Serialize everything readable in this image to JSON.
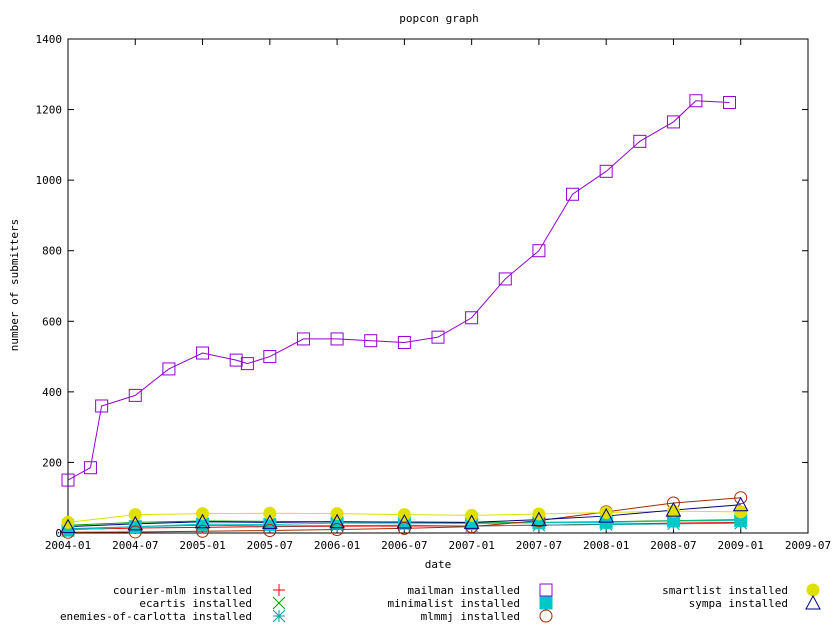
{
  "chart_data": {
    "type": "line",
    "title": "popcon graph",
    "xlabel": "date",
    "ylabel": "number of submitters",
    "ylim": [
      0,
      1400
    ],
    "yticks": [
      0,
      200,
      400,
      600,
      800,
      1000,
      1200,
      1400
    ],
    "xlim": [
      "2004-01",
      "2009-07"
    ],
    "xticks": [
      "2004-01",
      "2004-07",
      "2005-01",
      "2005-07",
      "2006-01",
      "2006-07",
      "2007-01",
      "2007-07",
      "2008-01",
      "2008-07",
      "2009-01",
      "2009-07"
    ],
    "grid": false,
    "legend_position": "bottom",
    "series": [
      {
        "name": "courier-mlm installed",
        "color": "#ff0000",
        "marker": "plus",
        "x": [
          "2004-01",
          "2004-07",
          "2005-01",
          "2005-07",
          "2006-01",
          "2006-07",
          "2007-01",
          "2007-07",
          "2008-01",
          "2008-07",
          "2009-01"
        ],
        "y": [
          10,
          14,
          16,
          18,
          19,
          20,
          20,
          22,
          25,
          28,
          30
        ]
      },
      {
        "name": "ecartis installed",
        "color": "#00a000",
        "marker": "cross",
        "x": [
          "2004-01",
          "2004-07",
          "2005-01",
          "2005-07",
          "2006-01",
          "2006-07",
          "2007-01",
          "2007-07",
          "2008-01",
          "2008-07",
          "2009-01"
        ],
        "y": [
          22,
          30,
          34,
          33,
          32,
          30,
          29,
          30,
          32,
          35,
          38
        ]
      },
      {
        "name": "enemies-of-carlotta installed",
        "color": "#00a0a0",
        "marker": "asterisk",
        "x": [
          "2004-01",
          "2004-07",
          "2005-01",
          "2005-07",
          "2006-01",
          "2006-07",
          "2007-01",
          "2007-07",
          "2008-01",
          "2008-07",
          "2009-01"
        ],
        "y": [
          12,
          18,
          22,
          20,
          21,
          22,
          20,
          22,
          24,
          26,
          28
        ]
      },
      {
        "name": "mailman installed",
        "color": "#9400d3",
        "marker": "square",
        "x": [
          "2004-01",
          "2004-03",
          "2004-04",
          "2004-07",
          "2004-10",
          "2005-01",
          "2005-04",
          "2005-05",
          "2005-07",
          "2005-10",
          "2006-01",
          "2006-04",
          "2006-07",
          "2006-10",
          "2007-01",
          "2007-04",
          "2007-07",
          "2007-10",
          "2008-01",
          "2008-04",
          "2008-07",
          "2008-09",
          "2008-12"
        ],
        "y": [
          150,
          185,
          360,
          390,
          465,
          510,
          490,
          480,
          500,
          550,
          550,
          545,
          540,
          555,
          610,
          720,
          800,
          960,
          1025,
          1110,
          1165,
          1225,
          1220
        ]
      },
      {
        "name": "minimalist installed",
        "color": "#00c8c8",
        "marker": "filled-square",
        "x": [
          "2004-01",
          "2004-07",
          "2005-01",
          "2005-07",
          "2006-01",
          "2006-07",
          "2007-01",
          "2007-07",
          "2008-01",
          "2008-07",
          "2009-01"
        ],
        "y": [
          8,
          18,
          25,
          24,
          28,
          28,
          27,
          29,
          30,
          34,
          35
        ]
      },
      {
        "name": "mlmmj installed",
        "color": "#a52a00",
        "marker": "circle",
        "x": [
          "2004-01",
          "2004-07",
          "2005-01",
          "2005-07",
          "2006-01",
          "2006-07",
          "2007-01",
          "2007-07",
          "2008-01",
          "2008-07",
          "2009-01"
        ],
        "y": [
          2,
          3,
          5,
          7,
          10,
          13,
          18,
          35,
          60,
          85,
          100
        ]
      },
      {
        "name": "smartlist installed",
        "color": "#e0e000",
        "marker": "filled-circle",
        "x": [
          "2004-01",
          "2004-07",
          "2005-01",
          "2005-07",
          "2006-01",
          "2006-07",
          "2007-01",
          "2007-07",
          "2008-01",
          "2008-07",
          "2009-01"
        ],
        "y": [
          30,
          52,
          55,
          56,
          55,
          52,
          50,
          54,
          58,
          62,
          60
        ]
      },
      {
        "name": "sympa installed",
        "color": "#000080",
        "marker": "triangle",
        "x": [
          "2004-01",
          "2004-07",
          "2005-01",
          "2005-07",
          "2006-01",
          "2006-07",
          "2007-01",
          "2007-07",
          "2008-01",
          "2008-07",
          "2009-01"
        ],
        "y": [
          18,
          26,
          32,
          30,
          32,
          31,
          30,
          38,
          48,
          65,
          80
        ]
      }
    ]
  }
}
